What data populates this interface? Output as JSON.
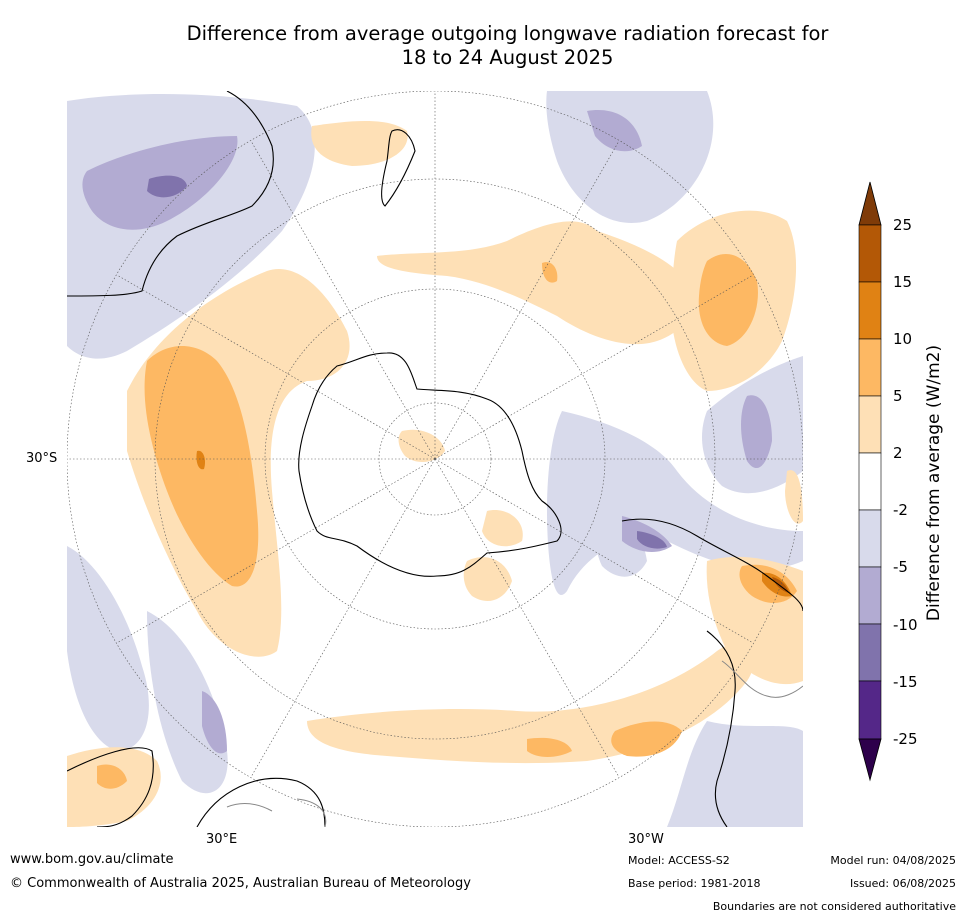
{
  "title_line1": "Difference from average outgoing longwave radiation forecast for",
  "title_line2": "18 to 24 August 2025",
  "graticule": {
    "lat_label": "30°S",
    "lon_labels": [
      "30°E",
      "30°W"
    ]
  },
  "colorbar": {
    "label": "Difference from average (W/m2)",
    "ticks": [
      "25",
      "15",
      "10",
      "5",
      "2",
      "-2",
      "-5",
      "-10",
      "-15",
      "-25"
    ],
    "colors": {
      "above_25": "#7f3b08",
      "15_25": "#b35806",
      "10_15": "#e08214",
      "5_10": "#fdb863",
      "2_5": "#fee0b6",
      "neutral": "#ffffff",
      "m5_m2": "#d8daeb",
      "m10_m5": "#b2abd2",
      "m15_m10": "#8073ac",
      "m25_m15": "#542788",
      "below_m25": "#2d004b"
    }
  },
  "footer": {
    "website": "www.bom.gov.au/climate",
    "copyright": "© Commonwealth of Australia 2025, Australian Bureau of Meteorology",
    "model": "Model: ACCESS-S2",
    "base_period": "Base period: 1981-2018",
    "model_run": "Model run: 04/08/2025",
    "issued": "Issued: 06/08/2025",
    "disclaimer": "Boundaries are not considered authoritative"
  }
}
